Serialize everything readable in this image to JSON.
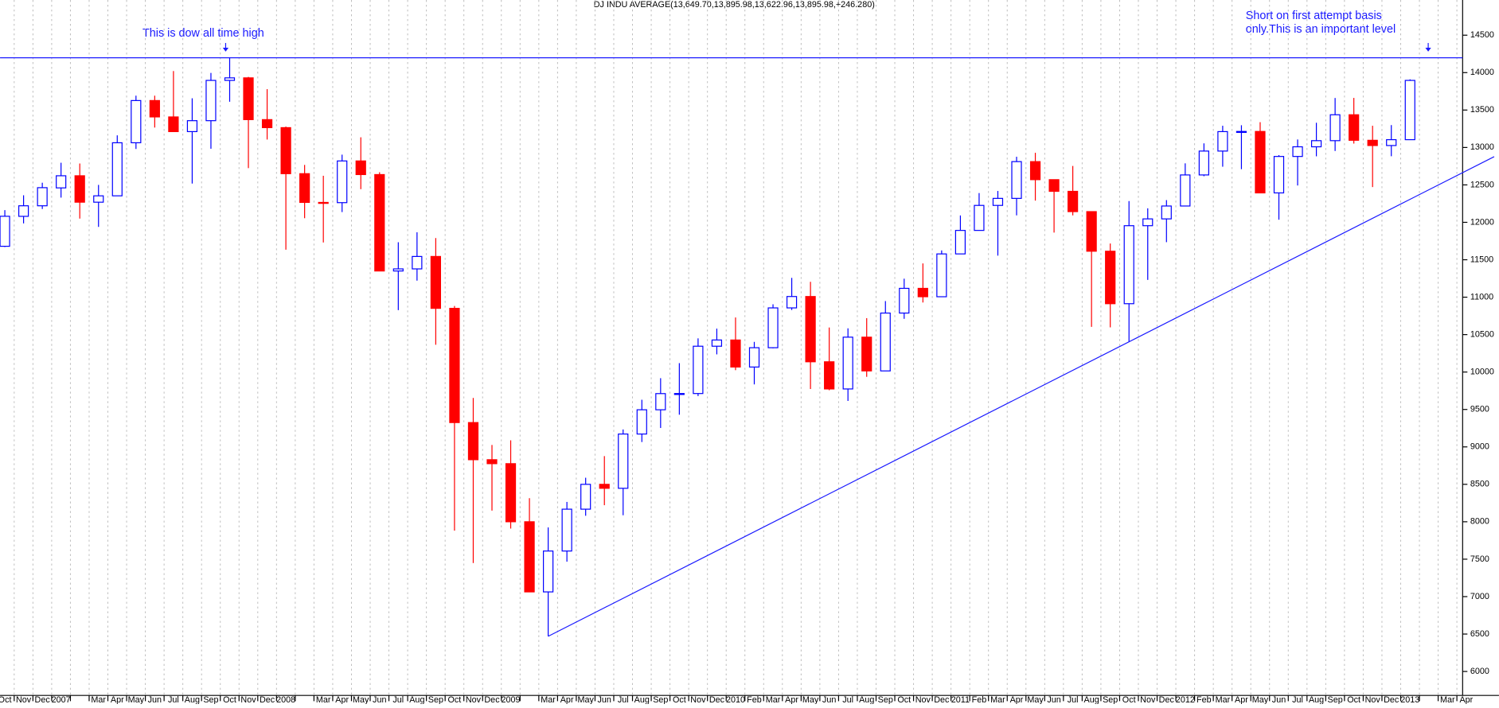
{
  "chart_data": {
    "type": "candlestick",
    "title": "DJ INDU AVERAGE(13,649.70,13,895.98,13,622.96,13,895.98,+246.280)",
    "annotations": [
      "This is dow all time high",
      "Short on first attempt basis",
      "only.This is an important level"
    ],
    "categories": [
      "Oct",
      "Nov",
      "Dec",
      "2007",
      null,
      "Mar",
      "Apr",
      "May",
      "Jun",
      "Jul",
      "Aug",
      "Sep",
      "Oct",
      "Nov",
      "Dec",
      "2008",
      null,
      "Mar",
      "Apr",
      "May",
      "Jun",
      "Jul",
      "Aug",
      "Sep",
      "Oct",
      "Nov",
      "Dec",
      "2009",
      null,
      "Mar",
      "Apr",
      "May",
      "Jun",
      "Jul",
      "Aug",
      "Sep",
      "Oct",
      "Nov",
      "Dec",
      "2010",
      "Feb",
      "Mar",
      "Apr",
      "May",
      "Jun",
      "Jul",
      "Aug",
      "Sep",
      "Oct",
      "Nov",
      "Dec",
      "2011",
      "Feb",
      "Mar",
      "Apr",
      "May",
      "Jun",
      "Jul",
      "Aug",
      "Sep",
      "Oct",
      "Nov",
      "Dec",
      "2012",
      "Feb",
      "Mar",
      "Apr",
      "May",
      "Jun",
      "Jul",
      "Aug",
      "Sep",
      "Oct",
      "Nov",
      "Dec",
      "2013",
      null,
      "Mar",
      "Apr"
    ],
    "open": [
      11680,
      12080,
      12221,
      12460,
      12622,
      12269,
      12354,
      13063,
      13627,
      13408,
      13212,
      13358,
      13896,
      13930,
      13372,
      13265,
      12650,
      12266,
      12263,
      12820,
      12638,
      11350,
      11378,
      11544,
      10851,
      9325,
      8829,
      8776,
      8000,
      7063,
      7609,
      8168,
      8500,
      8447,
      9172,
      9496,
      9712,
      9713,
      10345,
      10428,
      10067,
      10325,
      10857,
      11009,
      10137,
      9774,
      10466,
      10015,
      10788,
      11118,
      11006,
      11578,
      11892,
      12226,
      12320,
      12811,
      12570,
      12414,
      12143,
      11614,
      10913,
      11955,
      12046,
      12218,
      12633,
      12952,
      13212,
      13214,
      12393,
      12880,
      13009,
      13091,
      13437,
      13096,
      13026,
      13104,
      null,
      null,
      null
    ],
    "high": [
      12163,
      12361,
      12529,
      12796,
      12786,
      12500,
      13162,
      13692,
      13692,
      14021,
      13657,
      13996,
      14198,
      13943,
      13779,
      13279,
      12767,
      12622,
      12904,
      13136,
      12669,
      11734,
      11867,
      11790,
      10882,
      9654,
      9026,
      9088,
      8315,
      7924,
      8265,
      8588,
      8877,
      9233,
      9630,
      9918,
      10119,
      10450,
      10580,
      10729,
      10403,
      10905,
      11258,
      11205,
      10595,
      10584,
      10720,
      10948,
      11247,
      11451,
      11625,
      12092,
      12391,
      12419,
      12876,
      12929,
      12570,
      12753,
      12143,
      11717,
      12284,
      12187,
      12297,
      12788,
      13055,
      13290,
      13297,
      13338,
      12898,
      13107,
      13330,
      13661,
      13662,
      13290,
      13299,
      13910,
      null,
      null,
      null
    ],
    "low": [
      11670,
      11986,
      12178,
      12330,
      12050,
      11939,
      12354,
      12980,
      13266,
      13265,
      12518,
      12983,
      13611,
      12724,
      13106,
      11634,
      12055,
      11731,
      12137,
      12443,
      11346,
      10827,
      11221,
      10365,
      7882,
      7449,
      8149,
      7909,
      7062,
      6470,
      7467,
      8080,
      8221,
      8087,
      9065,
      9253,
      9430,
      9679,
      10236,
      10025,
      9835,
      10317,
      10829,
      9774,
      9757,
      9614,
      9936,
      10015,
      10711,
      10929,
      11006,
      11578,
      11892,
      11555,
      12093,
      12290,
      11863,
      12093,
      10604,
      10597,
      10404,
      11231,
      11735,
      12218,
      12616,
      12743,
      12710,
      12391,
      12035,
      12492,
      12882,
      12953,
      13052,
      12471,
      12883,
      13104,
      null,
      null,
      null
    ],
    "close": [
      12081,
      12221,
      12463,
      12622,
      12269,
      12354,
      13063,
      13627,
      13408,
      13212,
      13358,
      13896,
      13930,
      13372,
      13265,
      12650,
      12266,
      12263,
      12820,
      12638,
      11350,
      11378,
      11544,
      10851,
      9325,
      8829,
      8776,
      8000,
      7063,
      7609,
      8168,
      8500,
      8447,
      9172,
      9496,
      9712,
      9713,
      10345,
      10428,
      10067,
      10325,
      10857,
      11009,
      10137,
      9774,
      10466,
      10015,
      10788,
      11118,
      11006,
      11578,
      11892,
      12226,
      12320,
      12811,
      12570,
      12414,
      12143,
      11614,
      10913,
      11955,
      12046,
      12218,
      12633,
      12952,
      13212,
      13214,
      12393,
      12880,
      13009,
      13091,
      13437,
      13096,
      13026,
      13104,
      13896,
      null,
      null,
      null
    ],
    "up_color": "#0000ff",
    "down_color": "#ff0000",
    "reference_line": 14198,
    "trendline": [
      [
        29,
        6470
      ],
      [
        60,
        10404
      ]
    ],
    "ylim": [
      5680,
      14970
    ],
    "yticks": [
      6000,
      6500,
      7000,
      7500,
      8000,
      8500,
      9000,
      9500,
      10000,
      10500,
      11000,
      11500,
      12000,
      12500,
      13000,
      13500,
      14000,
      14500
    ],
    "grid": true
  }
}
